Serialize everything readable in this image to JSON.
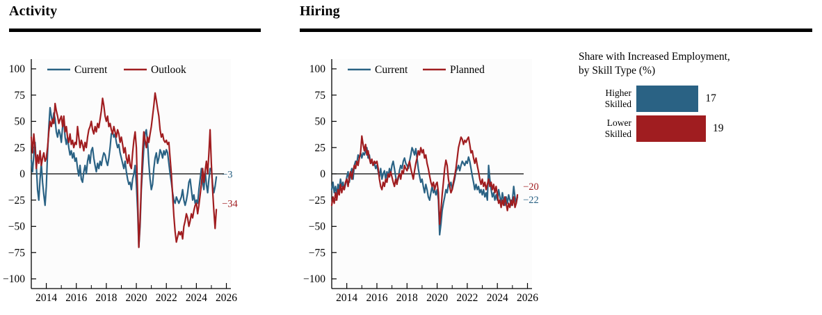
{
  "colors": {
    "blue": "#2A6284",
    "red": "#A01D20",
    "axis": "#000000",
    "rule": "#000000",
    "plot_bg": "#fcfcfc"
  },
  "sections": [
    {
      "title": "Activity"
    },
    {
      "title": "Hiring"
    }
  ],
  "chart_data": [
    {
      "id": "activity",
      "type": "line",
      "title": "Activity",
      "x_start": 2013.0,
      "x_step_years": 0.0833333,
      "xlim": [
        2013,
        2026.3
      ],
      "ylim": [
        -100,
        100
      ],
      "y_ticks": [
        100,
        75,
        50,
        25,
        0,
        -25,
        -50,
        -75,
        -100
      ],
      "x_ticks_major": [
        2014,
        2016,
        2018,
        2020,
        2022,
        2024,
        2026
      ],
      "x_ticks_minor": [
        2013,
        2015,
        2017,
        2019,
        2021,
        2023,
        2025
      ],
      "grid": false,
      "zero_line": true,
      "legend_position": "top-inside",
      "series": [
        {
          "name": "Current",
          "color_key": "blue",
          "end_label": "−3",
          "values": [
            13,
            2,
            18,
            30,
            8,
            -15,
            -25,
            -5,
            10,
            -8,
            -20,
            -30,
            -12,
            20,
            45,
            63,
            55,
            48,
            58,
            52,
            40,
            35,
            42,
            38,
            30,
            45,
            50,
            35,
            28,
            35,
            25,
            18,
            22,
            15,
            20,
            12,
            15,
            5,
            -2,
            8,
            -5,
            -8,
            2,
            8,
            0,
            12,
            18,
            10,
            22,
            25,
            15,
            8,
            2,
            10,
            5,
            12,
            8,
            15,
            20,
            18,
            12,
            8,
            15,
            25,
            38,
            40,
            35,
            38,
            30,
            25,
            28,
            20,
            15,
            10,
            5,
            12,
            2,
            -5,
            -10,
            -8,
            -15,
            -5,
            0,
            8,
            -10,
            -35,
            -70,
            -50,
            -15,
            5,
            25,
            38,
            42,
            30,
            10,
            -5,
            -15,
            -10,
            5,
            15,
            20,
            10,
            15,
            23,
            20,
            15,
            22,
            18,
            23,
            20,
            10,
            0,
            -8,
            -18,
            -25,
            -28,
            -22,
            -25,
            -28,
            -25,
            -22,
            -15,
            -25,
            -30,
            -25,
            -18,
            -8,
            -5,
            -15,
            -25,
            -20,
            -28,
            -25,
            -28,
            -15,
            -5,
            5,
            -8,
            -15,
            3,
            -10,
            -18,
            -5,
            5,
            5,
            -10,
            -18,
            -12,
            -3
          ]
        },
        {
          "name": "Outlook",
          "color_key": "red",
          "end_label": "−34",
          "values": [
            35,
            20,
            38,
            25,
            5,
            18,
            10,
            22,
            8,
            15,
            20,
            12,
            15,
            25,
            40,
            50,
            45,
            52,
            48,
            67,
            60,
            55,
            48,
            52,
            55,
            45,
            55,
            40,
            45,
            35,
            30,
            38,
            28,
            32,
            25,
            30,
            28,
            45,
            35,
            25,
            32,
            28,
            22,
            30,
            25,
            35,
            42,
            45,
            50,
            42,
            38,
            45,
            40,
            48,
            44,
            52,
            60,
            72,
            65,
            55,
            50,
            55,
            45,
            48,
            42,
            38,
            45,
            40,
            35,
            42,
            38,
            30,
            35,
            28,
            20,
            25,
            15,
            10,
            18,
            8,
            5,
            20,
            32,
            40,
            25,
            -20,
            -70,
            -45,
            -10,
            20,
            40,
            32,
            25,
            35,
            30,
            38,
            45,
            55,
            65,
            77,
            70,
            62,
            55,
            42,
            35,
            38,
            32,
            30,
            32,
            28,
            30,
            15,
            0,
            -20,
            -40,
            -55,
            -65,
            -60,
            -55,
            -58,
            -55,
            -62,
            -50,
            -45,
            -38,
            -42,
            -50,
            -45,
            -38,
            -42,
            -35,
            -30,
            -28,
            -38,
            -30,
            -20,
            -10,
            5,
            -8,
            3,
            12,
            0,
            20,
            42,
            10,
            -15,
            -35,
            -52,
            -34
          ]
        }
      ]
    },
    {
      "id": "hiring",
      "type": "line",
      "title": "Hiring",
      "x_start": 2013.0,
      "x_step_years": 0.0833333,
      "xlim": [
        2013,
        2026.3
      ],
      "ylim": [
        -100,
        100
      ],
      "y_ticks": [
        100,
        75,
        50,
        25,
        0,
        -25,
        -50,
        -75,
        -100
      ],
      "x_ticks_major": [
        2014,
        2016,
        2018,
        2020,
        2022,
        2024,
        2026
      ],
      "x_ticks_minor": [
        2013,
        2015,
        2017,
        2019,
        2021,
        2023,
        2025
      ],
      "grid": false,
      "zero_line": true,
      "legend_position": "top-inside",
      "series": [
        {
          "name": "Current",
          "color_key": "blue",
          "end_label": "−22",
          "values": [
            -15,
            -8,
            -18,
            -12,
            -20,
            -10,
            -15,
            -5,
            -12,
            -8,
            -15,
            -10,
            -3,
            2,
            -8,
            0,
            5,
            -5,
            8,
            12,
            10,
            18,
            15,
            20,
            15,
            20,
            18,
            22,
            25,
            15,
            18,
            10,
            12,
            8,
            10,
            5,
            8,
            2,
            -3,
            5,
            -5,
            0,
            3,
            -5,
            2,
            -3,
            5,
            0,
            8,
            12,
            5,
            -3,
            -8,
            -5,
            3,
            8,
            5,
            12,
            15,
            10,
            8,
            5,
            12,
            18,
            25,
            22,
            18,
            24,
            15,
            5,
            -2,
            -8,
            -5,
            -12,
            -18,
            -10,
            -15,
            -22,
            -25,
            -18,
            -12,
            -18,
            -15,
            -20,
            -15,
            -25,
            -58,
            -48,
            -35,
            -28,
            -22,
            -15,
            -18,
            -10,
            -12,
            -8,
            -15,
            -10,
            -5,
            2,
            5,
            8,
            3,
            8,
            12,
            10,
            8,
            12,
            10,
            16,
            12,
            5,
            -2,
            -8,
            -15,
            -10,
            -15,
            -12,
            -18,
            -15,
            -20,
            -15,
            -22,
            -18,
            -25,
            8,
            -5,
            -15,
            -22,
            -18,
            -25,
            -20,
            -25,
            -15,
            -22,
            -28,
            -18,
            -25,
            -30,
            -22,
            -28,
            -20,
            -25,
            -30,
            -25,
            -12,
            -22,
            -28,
            -22
          ]
        },
        {
          "name": "Planned",
          "color_key": "red",
          "end_label": "−20",
          "values": [
            -30,
            -22,
            -28,
            -18,
            -25,
            -15,
            -20,
            -10,
            -18,
            -12,
            -15,
            -8,
            -5,
            -12,
            -3,
            2,
            -5,
            3,
            8,
            5,
            12,
            8,
            15,
            20,
            36,
            28,
            22,
            28,
            18,
            22,
            15,
            10,
            14,
            8,
            12,
            10,
            12,
            5,
            -5,
            -12,
            -15,
            -8,
            -12,
            -5,
            -8,
            0,
            -3,
            2,
            -3,
            -8,
            -12,
            -5,
            -10,
            -3,
            0,
            -5,
            3,
            0,
            8,
            5,
            3,
            8,
            12,
            5,
            0,
            -5,
            3,
            10,
            15,
            22,
            18,
            25,
            20,
            23,
            15,
            18,
            10,
            5,
            -2,
            -8,
            -12,
            -8,
            -15,
            -10,
            -8,
            -18,
            -48,
            -35,
            -20,
            -8,
            5,
            13,
            8,
            -5,
            -12,
            -18,
            -15,
            -8,
            -2,
            5,
            15,
            25,
            30,
            35,
            33,
            28,
            32,
            30,
            33,
            35,
            28,
            20,
            22,
            15,
            10,
            15,
            8,
            2,
            -5,
            -10,
            -5,
            -12,
            -8,
            -15,
            -10,
            -5,
            -12,
            -8,
            -15,
            -10,
            -18,
            -12,
            -20,
            -28,
            -25,
            -32,
            -25,
            -30,
            -22,
            -28,
            -35,
            -28,
            -32,
            -25,
            -30,
            -22,
            -32,
            -28,
            -20
          ]
        }
      ]
    },
    {
      "id": "employment-share",
      "type": "bar",
      "title": "Share with Increased Employment, by Skill Type (%)",
      "categories": [
        "Higher Skilled",
        "Lower Skilled"
      ],
      "values": [
        17,
        19
      ],
      "orientation": "horizontal"
    }
  ],
  "bar_chart": {
    "title_lines": [
      "Share with Increased Employment,",
      "by Skill Type (%)"
    ],
    "bars": [
      {
        "label_lines": [
          "Higher",
          "Skilled"
        ],
        "value": 17,
        "color_key": "blue"
      },
      {
        "label_lines": [
          "Lower",
          "Skilled"
        ],
        "value": 19,
        "color_key": "red"
      }
    ]
  }
}
